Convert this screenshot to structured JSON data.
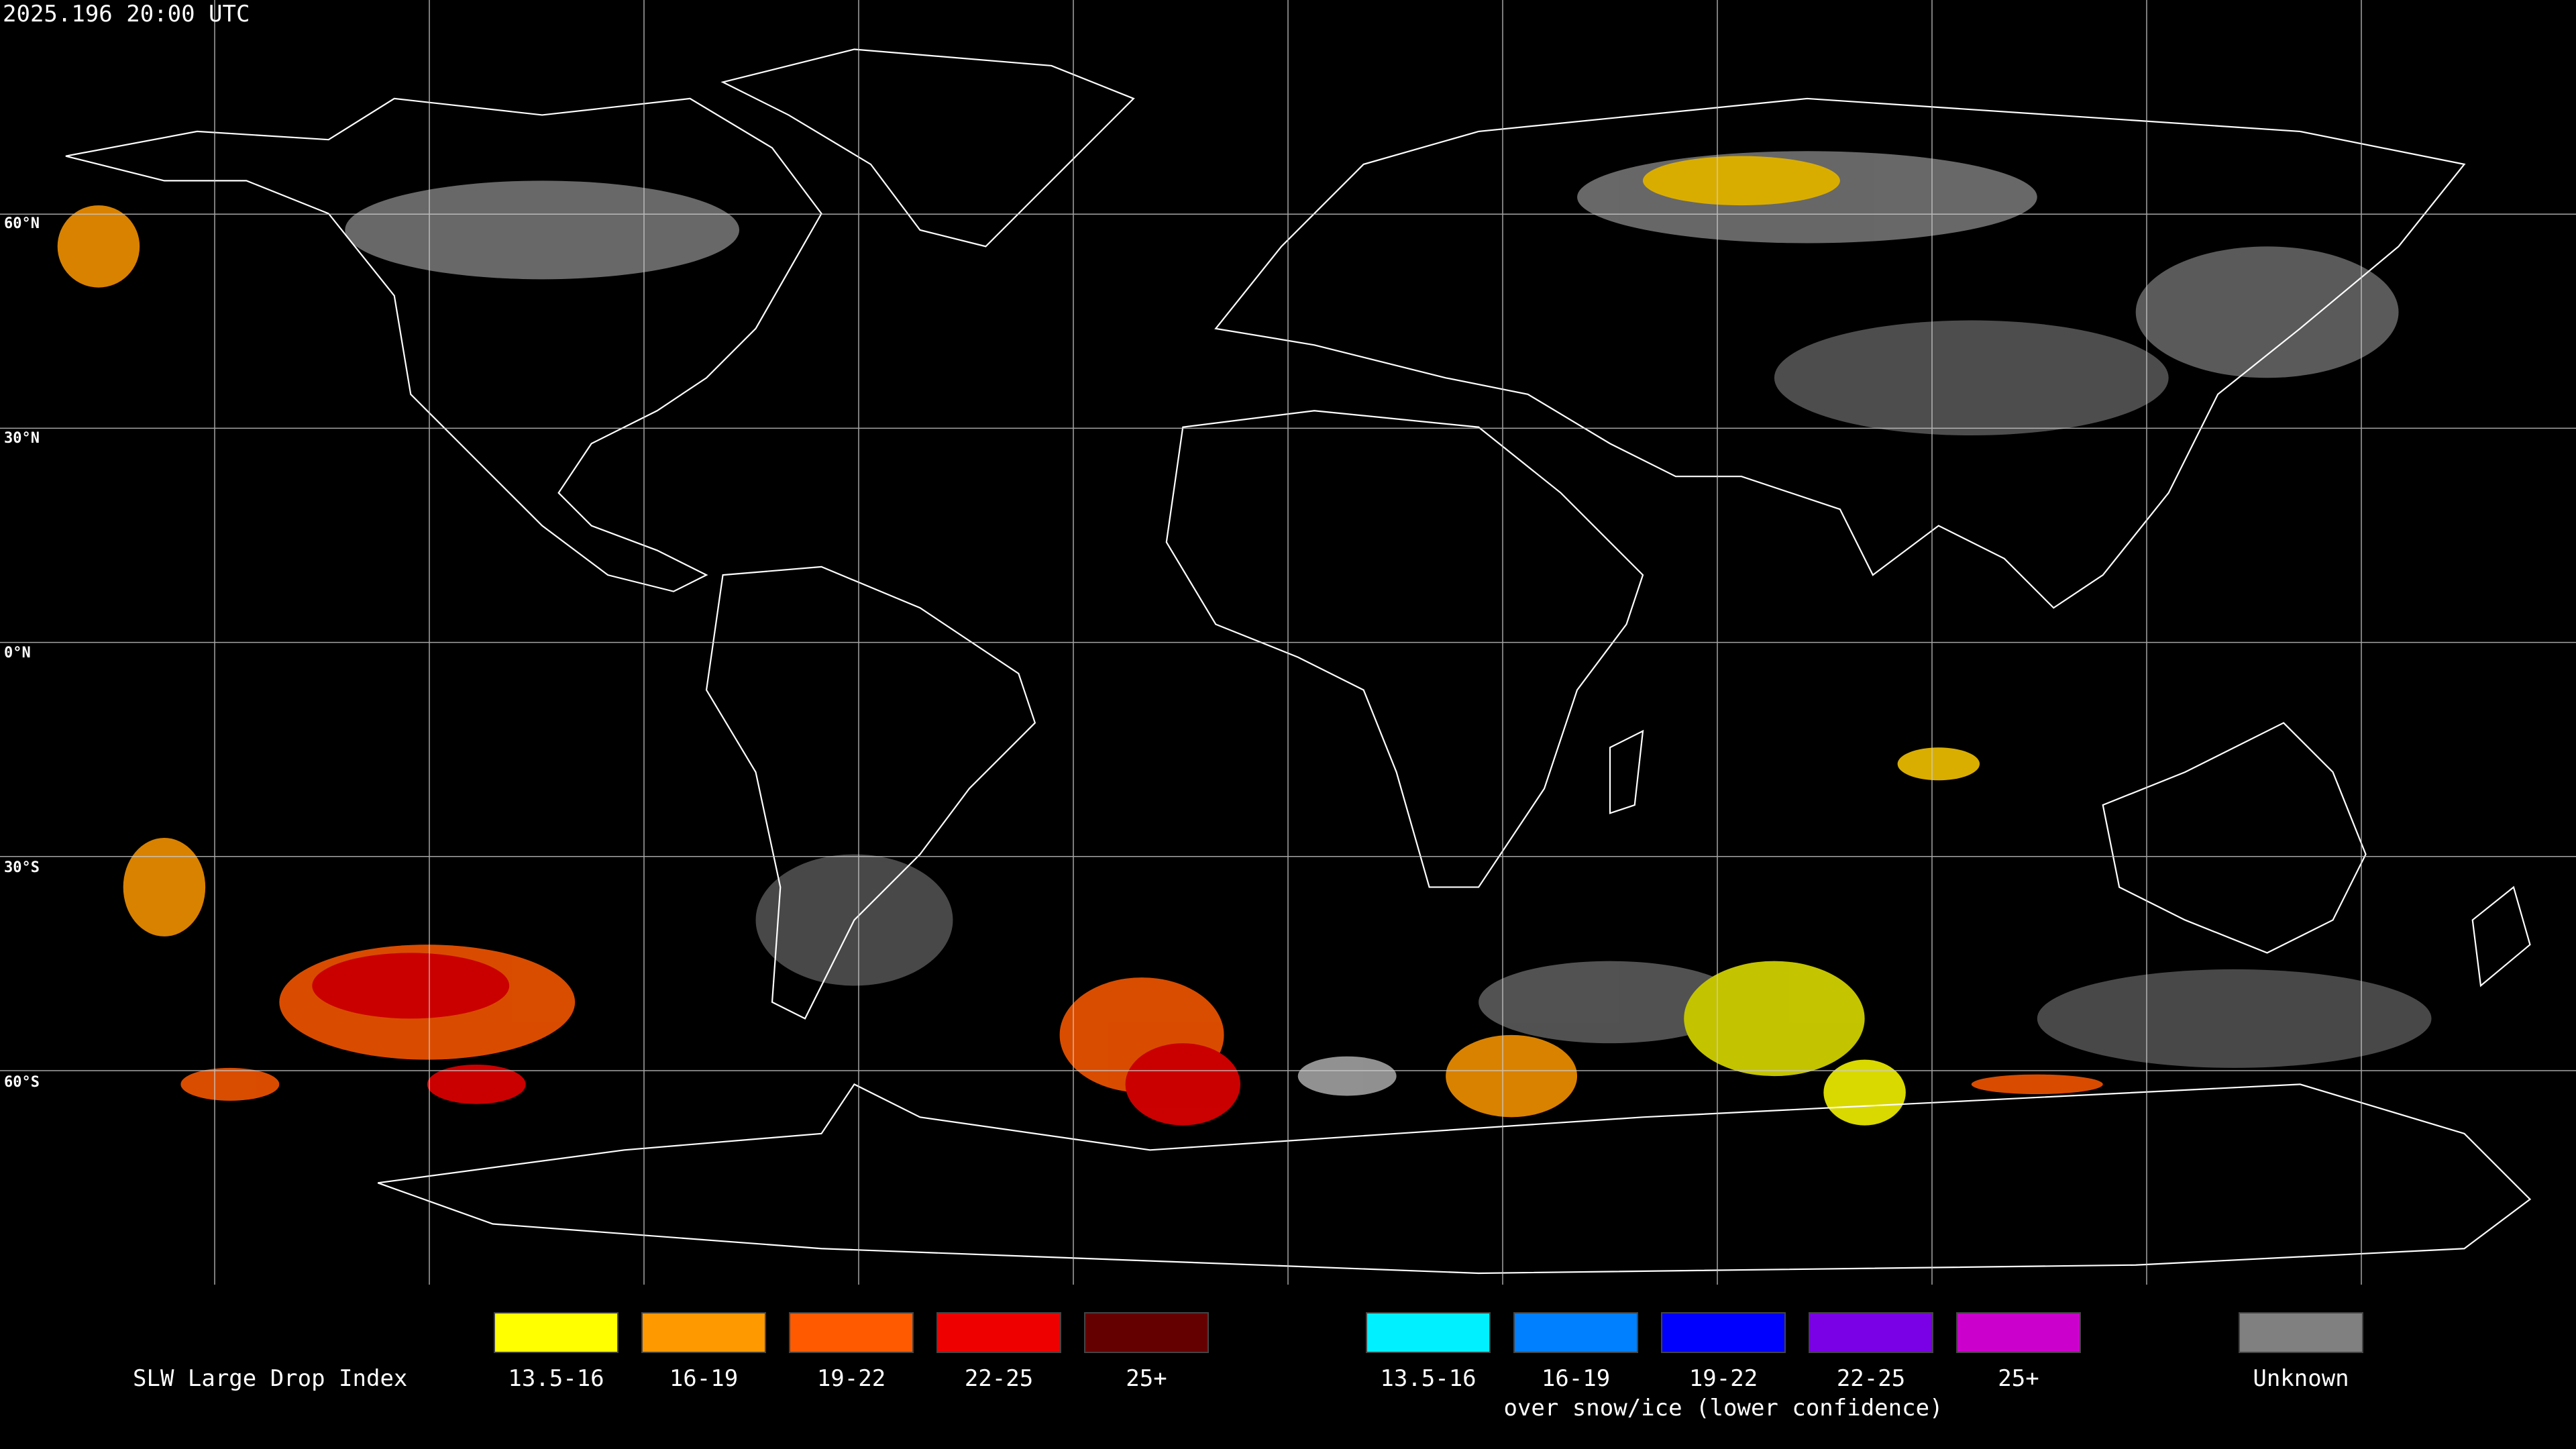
{
  "header": {
    "timestamp": "2025.196 20:00 UTC"
  },
  "map": {
    "latitude_labels": [
      "60°N",
      "30°N",
      "0°N",
      "30°S",
      "60°S"
    ]
  },
  "legend": {
    "title": "SLW Large Drop Index",
    "groups": [
      {
        "items": [
          {
            "label": "13.5-16",
            "color": "#ffff00"
          },
          {
            "label": "16-19",
            "color": "#ff9900"
          },
          {
            "label": "19-22",
            "color": "#ff5a00"
          },
          {
            "label": "22-25",
            "color": "#ee0000"
          },
          {
            "label": "25+",
            "color": "#650000"
          }
        ]
      },
      {
        "items": [
          {
            "label": "13.5-16",
            "color": "#00f0ff"
          },
          {
            "label": "16-19",
            "color": "#0080ff"
          },
          {
            "label": "19-22",
            "color": "#0000ff"
          },
          {
            "label": "22-25",
            "color": "#7a00e6"
          },
          {
            "label": "25+",
            "color": "#cc00cc"
          }
        ],
        "caption": "over snow/ice (lower confidence)"
      }
    ],
    "unknown": {
      "label": "Unknown",
      "color": "#808080"
    }
  }
}
